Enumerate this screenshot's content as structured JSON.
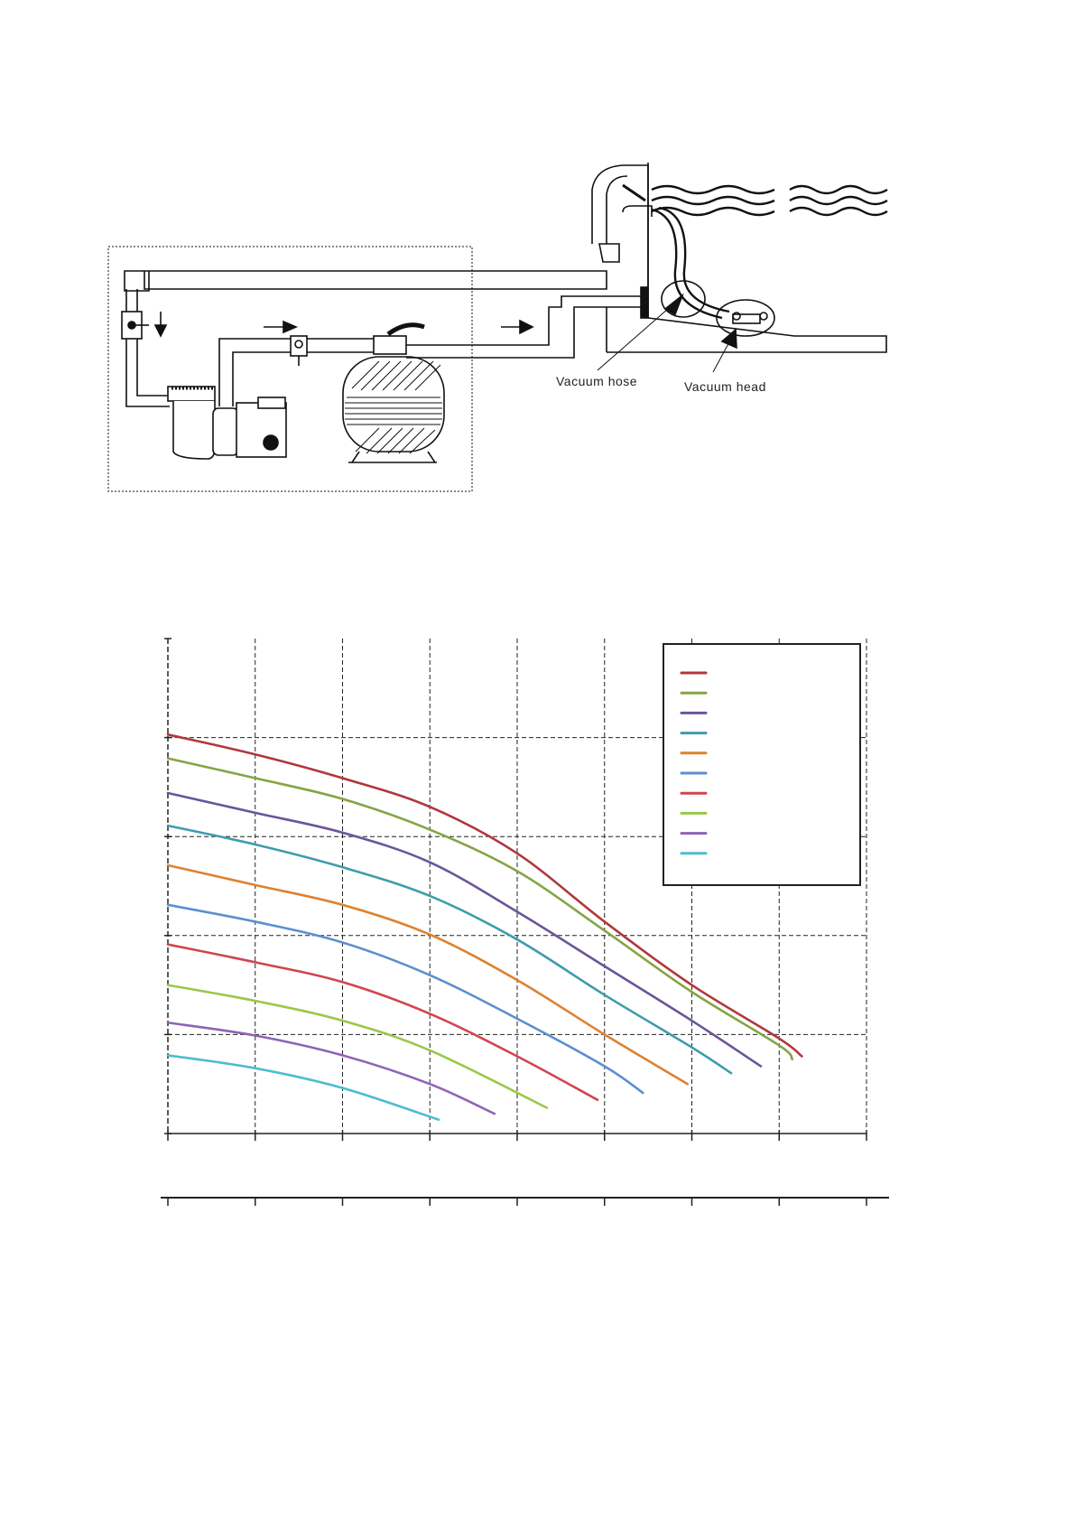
{
  "diagram": {
    "labels": {
      "vacuum_hose": "Vacuum hose",
      "vacuum_head": "Vacuum head"
    },
    "icons": [
      "pump-icon",
      "sand-filter-icon",
      "valve-icon",
      "skimmer-icon",
      "water-waves-icon",
      "flow-arrow-icon"
    ]
  },
  "chart_data": {
    "type": "line",
    "title": "",
    "xlabel": "",
    "ylabel": "",
    "xlim": [
      0,
      8
    ],
    "ylim": [
      0,
      5
    ],
    "grid": true,
    "legend_position": "top-right",
    "series": [
      {
        "color": "#b0373d",
        "points": [
          [
            0,
            4.03
          ],
          [
            1,
            3.83
          ],
          [
            2,
            3.59
          ],
          [
            3,
            3.3
          ],
          [
            4,
            2.83
          ],
          [
            5,
            2.14
          ],
          [
            6,
            1.5
          ],
          [
            7,
            0.96
          ],
          [
            7.26,
            0.78
          ]
        ]
      },
      {
        "color": "#84a544",
        "points": [
          [
            0,
            3.79
          ],
          [
            1,
            3.59
          ],
          [
            2,
            3.38
          ],
          [
            3,
            3.07
          ],
          [
            4,
            2.65
          ],
          [
            5,
            2.05
          ],
          [
            6,
            1.43
          ],
          [
            7,
            0.89
          ],
          [
            7.15,
            0.75
          ]
        ]
      },
      {
        "color": "#6a559a",
        "points": [
          [
            0,
            3.44
          ],
          [
            1,
            3.24
          ],
          [
            2,
            3.04
          ],
          [
            3,
            2.74
          ],
          [
            4,
            2.24
          ],
          [
            5,
            1.69
          ],
          [
            6,
            1.14
          ],
          [
            6.79,
            0.68
          ]
        ]
      },
      {
        "color": "#3f9cad",
        "points": [
          [
            0,
            3.11
          ],
          [
            1,
            2.92
          ],
          [
            2,
            2.69
          ],
          [
            3,
            2.4
          ],
          [
            4,
            1.96
          ],
          [
            5,
            1.4
          ],
          [
            6,
            0.87
          ],
          [
            6.45,
            0.61
          ]
        ]
      },
      {
        "color": "#dd8230",
        "points": [
          [
            0,
            2.71
          ],
          [
            1,
            2.51
          ],
          [
            2,
            2.31
          ],
          [
            3,
            2.01
          ],
          [
            4,
            1.55
          ],
          [
            5,
            1.0
          ],
          [
            5.95,
            0.5
          ]
        ]
      },
      {
        "color": "#5b8fcf",
        "points": [
          [
            0,
            2.31
          ],
          [
            1,
            2.14
          ],
          [
            2,
            1.93
          ],
          [
            3,
            1.6
          ],
          [
            4,
            1.16
          ],
          [
            5,
            0.68
          ],
          [
            5.44,
            0.41
          ]
        ]
      },
      {
        "color": "#d1454f",
        "points": [
          [
            0,
            1.91
          ],
          [
            1,
            1.73
          ],
          [
            2,
            1.53
          ],
          [
            3,
            1.21
          ],
          [
            4,
            0.78
          ],
          [
            4.92,
            0.34
          ]
        ]
      },
      {
        "color": "#9ac84a",
        "points": [
          [
            0,
            1.5
          ],
          [
            1,
            1.34
          ],
          [
            2,
            1.14
          ],
          [
            3,
            0.84
          ],
          [
            4.34,
            0.26
          ]
        ]
      },
      {
        "color": "#8e63b8",
        "points": [
          [
            0,
            1.12
          ],
          [
            1,
            0.99
          ],
          [
            2,
            0.79
          ],
          [
            3,
            0.5
          ],
          [
            3.74,
            0.2
          ]
        ]
      },
      {
        "color": "#4fbcd0",
        "points": [
          [
            0,
            0.79
          ],
          [
            1,
            0.66
          ],
          [
            2,
            0.46
          ],
          [
            3.1,
            0.14
          ]
        ]
      }
    ]
  }
}
